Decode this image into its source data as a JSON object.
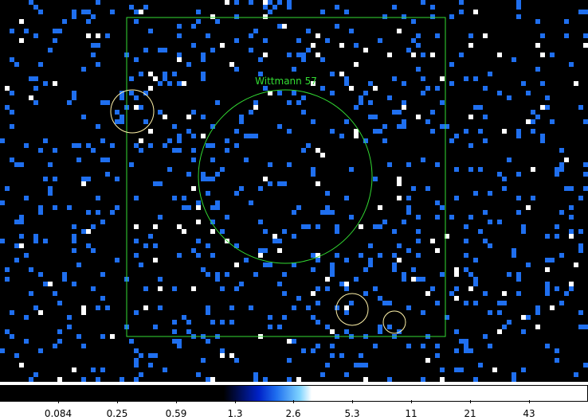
{
  "image": {
    "background": "#000000",
    "pixel_color_low": "#1f6fef",
    "pixel_color_high": "#ffffff",
    "overlay_color": "#33dd33",
    "region_color": "#fff2a8"
  },
  "regions": {
    "label": "Wittmann 57"
  },
  "colorbar": {
    "ticks": [
      "0.084",
      "0.25",
      "0.59",
      "1.3",
      "2.6",
      "5.3",
      "11",
      "21",
      "43"
    ],
    "gradient": [
      "#000000",
      "#000000",
      "#000010",
      "#0010a0",
      "#1f6fef",
      "#66c8ff",
      "#ffffff",
      "#ffffff",
      "#ffffff"
    ]
  }
}
